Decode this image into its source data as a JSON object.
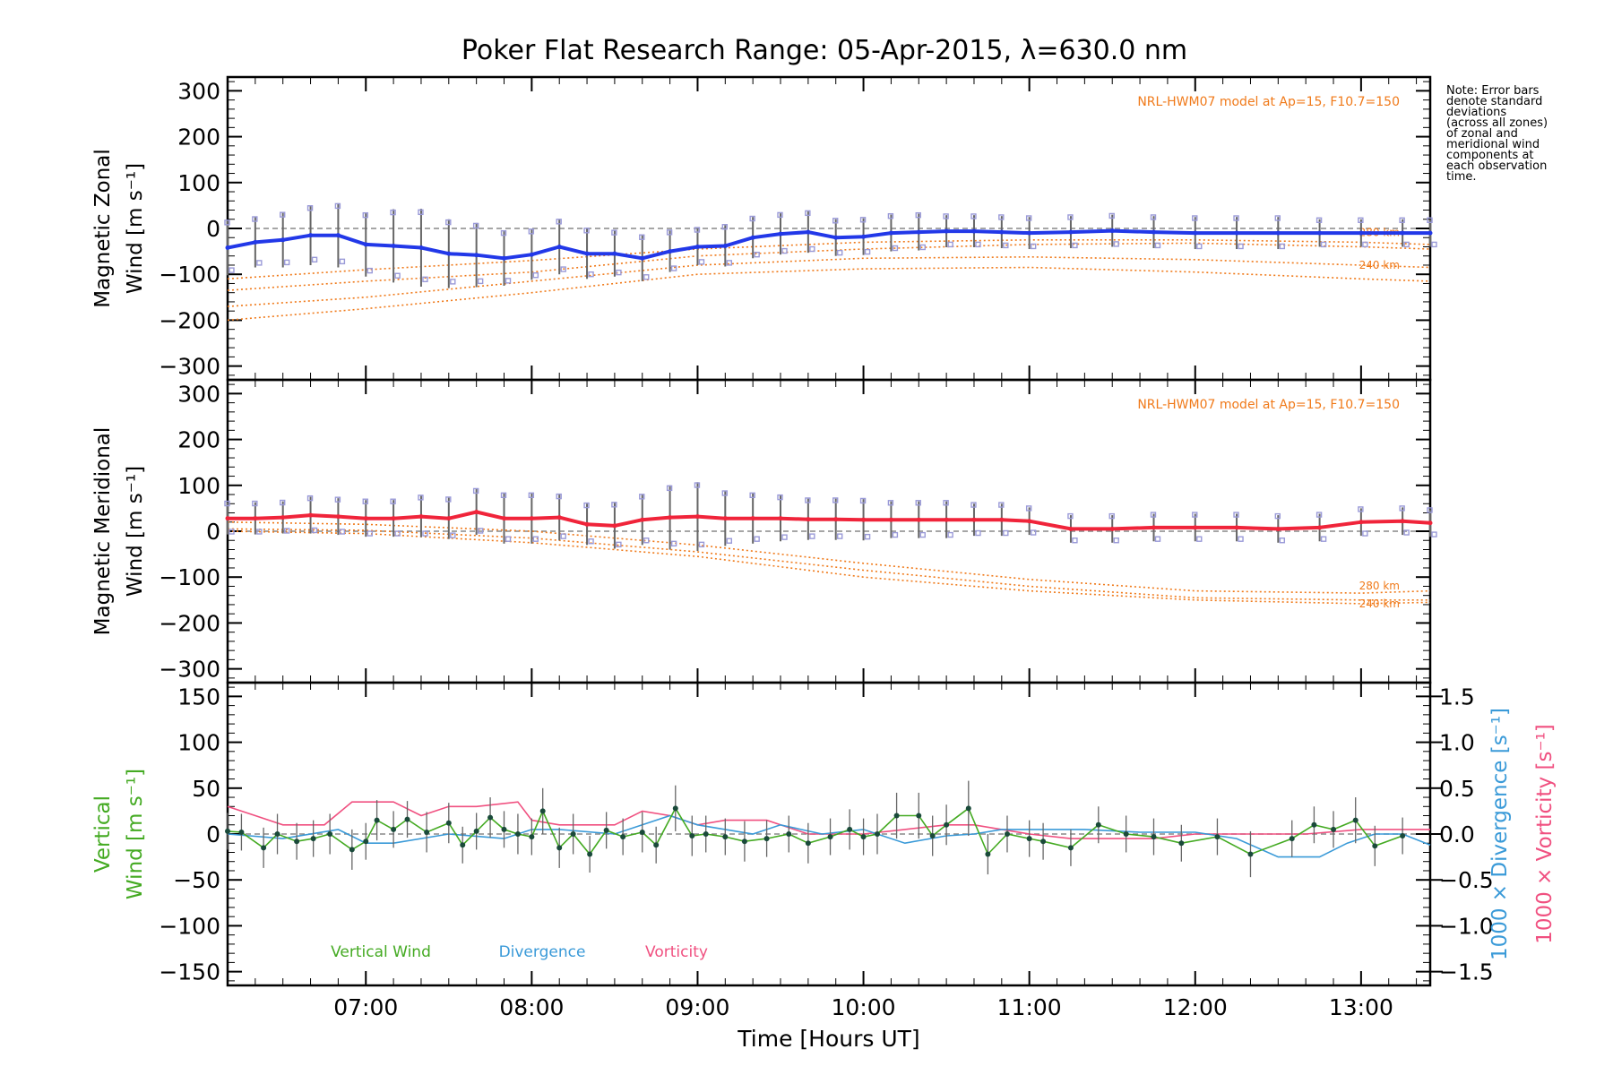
{
  "title": "Poker Flat Research Range: 05-Apr-2015, λ=630.0 nm",
  "note": [
    "Note: Error bars",
    "denote standard",
    "deviations",
    "(across all zones)",
    "of zonal and",
    "meridional wind",
    "components at",
    "each observation",
    "time."
  ],
  "colors": {
    "zonal": "#2238e8",
    "meridional": "#f0243a",
    "model": "#f07a1a",
    "zone_points": "#9a9ad8",
    "vertical": "#44aa22",
    "divergence": "#3a9ad8",
    "vorticity": "#f05080",
    "errorbar": "#666666"
  },
  "chart_data": [
    {
      "type": "line",
      "panel": "zonal",
      "ylabel_line1": "Magnetic Zonal",
      "ylabel_line2": "Wind [m s⁻¹]",
      "ylim": [
        -330,
        330
      ],
      "yticks": [
        -300,
        -200,
        -100,
        0,
        100,
        200,
        300
      ],
      "xlim": [
        "06:10",
        "13:25"
      ],
      "xticks": [
        "07:00",
        "08:00",
        "09:00",
        "10:00",
        "11:00",
        "12:00",
        "13:00"
      ],
      "model_label": "NRL-HWM07 model at Ap=15, F10.7=150",
      "model_height_labels": [
        "280 km",
        "240 km"
      ],
      "series": [
        {
          "role": "mean",
          "x": [
            "06:10",
            "06:20",
            "06:30",
            "06:40",
            "06:50",
            "07:00",
            "07:10",
            "07:20",
            "07:30",
            "07:40",
            "07:50",
            "08:00",
            "08:10",
            "08:20",
            "08:30",
            "08:40",
            "08:50",
            "09:00",
            "09:10",
            "09:20",
            "09:30",
            "09:40",
            "09:50",
            "10:00",
            "10:10",
            "10:20",
            "10:30",
            "10:40",
            "10:50",
            "11:00",
            "11:15",
            "11:30",
            "11:45",
            "12:00",
            "12:15",
            "12:30",
            "12:45",
            "13:00",
            "13:15",
            "13:25"
          ],
          "values": [
            -42,
            -30,
            -25,
            -15,
            -15,
            -35,
            -38,
            -42,
            -55,
            -58,
            -65,
            -57,
            -40,
            -55,
            -55,
            -65,
            -50,
            -40,
            -38,
            -20,
            -12,
            -8,
            -20,
            -18,
            -10,
            -8,
            -6,
            -6,
            -8,
            -10,
            -8,
            -5,
            -8,
            -10,
            -10,
            -10,
            -10,
            -10,
            -10,
            -10
          ],
          "error": [
            60,
            55,
            60,
            65,
            70,
            70,
            80,
            85,
            75,
            70,
            60,
            55,
            60,
            55,
            50,
            50,
            45,
            40,
            45,
            45,
            45,
            45,
            40,
            40,
            40,
            40,
            35,
            35,
            35,
            35,
            35,
            35,
            35,
            35,
            35,
            35,
            30,
            30,
            30,
            30
          ]
        },
        {
          "role": "model",
          "name": "280 km",
          "x": [
            "06:10",
            "07:00",
            "08:00",
            "09:00",
            "10:00",
            "11:00",
            "12:00",
            "13:00",
            "13:25"
          ],
          "values": [
            -135,
            -115,
            -95,
            -60,
            -45,
            -35,
            -32,
            -40,
            -45
          ]
        },
        {
          "role": "model",
          "name": "240 km",
          "x": [
            "06:10",
            "07:00",
            "08:00",
            "09:00",
            "10:00",
            "11:00",
            "12:00",
            "13:00",
            "13:25"
          ],
          "values": [
            -170,
            -150,
            -115,
            -80,
            -65,
            -62,
            -68,
            -80,
            -85
          ]
        },
        {
          "role": "model",
          "x": [
            "06:10",
            "07:00",
            "08:00",
            "09:00",
            "10:00",
            "11:00",
            "12:00",
            "13:00",
            "13:25"
          ],
          "values": [
            -200,
            -175,
            -140,
            -100,
            -88,
            -85,
            -95,
            -110,
            -115
          ]
        },
        {
          "role": "model",
          "x": [
            "06:10",
            "07:00",
            "08:00",
            "09:00",
            "10:00",
            "11:00",
            "12:00",
            "13:00",
            "13:25"
          ],
          "values": [
            -110,
            -90,
            -70,
            -45,
            -30,
            -25,
            -25,
            -30,
            -35
          ]
        }
      ],
      "grid": false
    },
    {
      "type": "line",
      "panel": "meridional",
      "ylabel_line1": "Magnetic Meridional",
      "ylabel_line2": "Wind [m s⁻¹]",
      "ylim": [
        -330,
        330
      ],
      "yticks": [
        -300,
        -200,
        -100,
        0,
        100,
        200,
        300
      ],
      "model_label": "NRL-HWM07 model at Ap=15, F10.7=150",
      "model_height_labels": [
        "280 km",
        "240 km"
      ],
      "series": [
        {
          "role": "mean",
          "x": [
            "06:10",
            "06:20",
            "06:30",
            "06:40",
            "06:50",
            "07:00",
            "07:10",
            "07:20",
            "07:30",
            "07:40",
            "07:50",
            "08:00",
            "08:10",
            "08:20",
            "08:30",
            "08:40",
            "08:50",
            "09:00",
            "09:10",
            "09:20",
            "09:30",
            "09:40",
            "09:50",
            "10:00",
            "10:10",
            "10:20",
            "10:30",
            "10:40",
            "10:50",
            "11:00",
            "11:15",
            "11:30",
            "11:45",
            "12:00",
            "12:15",
            "12:30",
            "12:45",
            "13:00",
            "13:15",
            "13:25"
          ],
          "values": [
            28,
            28,
            30,
            35,
            32,
            28,
            28,
            32,
            28,
            42,
            28,
            28,
            30,
            15,
            12,
            25,
            30,
            32,
            28,
            28,
            28,
            26,
            26,
            25,
            25,
            25,
            25,
            25,
            25,
            22,
            5,
            5,
            8,
            8,
            8,
            5,
            8,
            20,
            22,
            18
          ],
          "error": [
            35,
            35,
            35,
            40,
            40,
            40,
            40,
            45,
            45,
            50,
            55,
            55,
            50,
            45,
            50,
            55,
            70,
            75,
            60,
            55,
            50,
            45,
            45,
            45,
            40,
            40,
            40,
            35,
            35,
            30,
            30,
            30,
            30,
            30,
            30,
            30,
            30,
            30,
            30,
            30
          ]
        },
        {
          "role": "model",
          "name": "280 km",
          "x": [
            "06:10",
            "07:00",
            "08:00",
            "09:00",
            "10:00",
            "11:00",
            "12:00",
            "13:00",
            "13:25"
          ],
          "values": [
            5,
            2,
            -15,
            -45,
            -85,
            -120,
            -145,
            -150,
            -150
          ]
        },
        {
          "role": "model",
          "name": "240 km",
          "x": [
            "06:10",
            "07:00",
            "08:00",
            "09:00",
            "10:00",
            "11:00",
            "12:00",
            "13:00",
            "13:25"
          ],
          "values": [
            0,
            -5,
            -25,
            -55,
            -100,
            -130,
            -150,
            -158,
            -155
          ]
        },
        {
          "role": "model",
          "x": [
            "06:10",
            "07:00",
            "08:00",
            "09:00",
            "10:00",
            "11:00",
            "12:00",
            "13:00",
            "13:25"
          ],
          "values": [
            20,
            15,
            0,
            -30,
            -70,
            -105,
            -130,
            -135,
            -130
          ]
        }
      ],
      "grid": false
    },
    {
      "type": "line",
      "panel": "vertical",
      "ylabel_line1": "Vertical",
      "ylabel_line2": "Wind [m s⁻¹]",
      "ylim": [
        -165,
        165
      ],
      "yticks": [
        -150,
        -100,
        -50,
        0,
        50,
        100,
        150
      ],
      "y2label_line1": "1000 × Divergence [s⁻¹]",
      "y2label_line2": "1000 × Vorticity [s⁻¹]",
      "y2lim": [
        -1.65,
        1.65
      ],
      "y2ticks": [
        "-1.5",
        "-1.0",
        "-0.5",
        "0.0",
        "0.5",
        "1.0",
        "1.5"
      ],
      "xlabel": "Time [Hours UT]",
      "legend": [
        "Vertical Wind",
        "Divergence",
        "Vorticity"
      ],
      "series": [
        {
          "name": "Vertical Wind",
          "axis": "left",
          "x": [
            "06:10",
            "06:15",
            "06:23",
            "06:28",
            "06:35",
            "06:41",
            "06:47",
            "06:55",
            "07:00",
            "07:04",
            "07:10",
            "07:15",
            "07:22",
            "07:30",
            "07:35",
            "07:40",
            "07:45",
            "07:50",
            "07:55",
            "08:00",
            "08:04",
            "08:10",
            "08:15",
            "08:21",
            "08:27",
            "08:33",
            "08:40",
            "08:45",
            "08:52",
            "08:58",
            "09:03",
            "09:10",
            "09:17",
            "09:25",
            "09:33",
            "09:40",
            "09:48",
            "09:55",
            "10:00",
            "10:05",
            "10:12",
            "10:20",
            "10:25",
            "10:30",
            "10:38",
            "10:45",
            "10:52",
            "11:00",
            "11:05",
            "11:15",
            "11:25",
            "11:35",
            "11:45",
            "11:55",
            "12:08",
            "12:20",
            "12:35",
            "12:43",
            "12:50",
            "12:58",
            "13:05",
            "13:15"
          ],
          "values": [
            3,
            2,
            -15,
            0,
            -8,
            -5,
            0,
            -17,
            -8,
            15,
            5,
            16,
            2,
            12,
            -12,
            3,
            18,
            5,
            0,
            -3,
            25,
            -15,
            0,
            -22,
            4,
            -3,
            2,
            -12,
            28,
            -2,
            0,
            -3,
            -8,
            -5,
            0,
            -10,
            -3,
            5,
            -3,
            0,
            20,
            20,
            -2,
            10,
            28,
            -22,
            0,
            -5,
            -8,
            -15,
            10,
            0,
            -3,
            -10,
            -3,
            -22,
            -5,
            10,
            5,
            15,
            -13,
            -2
          ],
          "error": [
            20,
            20,
            22,
            22,
            20,
            20,
            22,
            22,
            20,
            22,
            20,
            20,
            22,
            22,
            20,
            20,
            22,
            20,
            22,
            20,
            25,
            22,
            22,
            20,
            20,
            20,
            22,
            20,
            25,
            22,
            20,
            20,
            22,
            20,
            20,
            22,
            20,
            22,
            20,
            22,
            25,
            25,
            22,
            22,
            30,
            22,
            20,
            20,
            20,
            20,
            20,
            20,
            20,
            20,
            20,
            25,
            20,
            20,
            20,
            25,
            22,
            20
          ]
        },
        {
          "name": "Divergence",
          "axis": "right",
          "x": [
            "06:10",
            "06:30",
            "06:50",
            "07:00",
            "07:10",
            "07:30",
            "07:50",
            "08:00",
            "08:10",
            "08:30",
            "08:50",
            "09:00",
            "09:10",
            "09:20",
            "09:30",
            "09:45",
            "10:00",
            "10:15",
            "10:30",
            "10:40",
            "10:50",
            "11:00",
            "11:20",
            "11:40",
            "12:00",
            "12:15",
            "12:30",
            "12:45",
            "12:55",
            "13:05",
            "13:15",
            "13:25"
          ],
          "values": [
            0.0,
            -0.05,
            0.05,
            -0.1,
            -0.1,
            0.0,
            -0.05,
            0.05,
            0.05,
            0.0,
            0.2,
            0.1,
            0.05,
            0.0,
            0.1,
            0.0,
            0.05,
            -0.1,
            -0.02,
            0.0,
            0.05,
            0.05,
            0.05,
            0.02,
            0.02,
            -0.05,
            -0.25,
            -0.25,
            -0.1,
            0.0,
            0.0,
            -0.12
          ]
        },
        {
          "name": "Vorticity",
          "axis": "right",
          "x": [
            "06:10",
            "06:20",
            "06:30",
            "06:45",
            "06:55",
            "07:10",
            "07:20",
            "07:30",
            "07:40",
            "07:55",
            "08:00",
            "08:10",
            "08:30",
            "08:40",
            "08:50",
            "09:00",
            "09:10",
            "09:25",
            "09:40",
            "10:00",
            "10:15",
            "10:30",
            "10:40",
            "10:50",
            "11:00",
            "11:15",
            "11:30",
            "11:45",
            "12:00",
            "12:20",
            "12:40",
            "13:00",
            "13:25"
          ],
          "values": [
            0.3,
            0.2,
            0.1,
            0.1,
            0.35,
            0.35,
            0.2,
            0.3,
            0.3,
            0.35,
            0.15,
            0.1,
            0.1,
            0.25,
            0.2,
            0.1,
            0.15,
            0.15,
            0.0,
            0.0,
            0.05,
            0.1,
            0.1,
            0.05,
            0.0,
            -0.05,
            -0.05,
            -0.05,
            0.0,
            0.0,
            0.0,
            0.05,
            0.05
          ]
        }
      ],
      "grid": false
    }
  ]
}
